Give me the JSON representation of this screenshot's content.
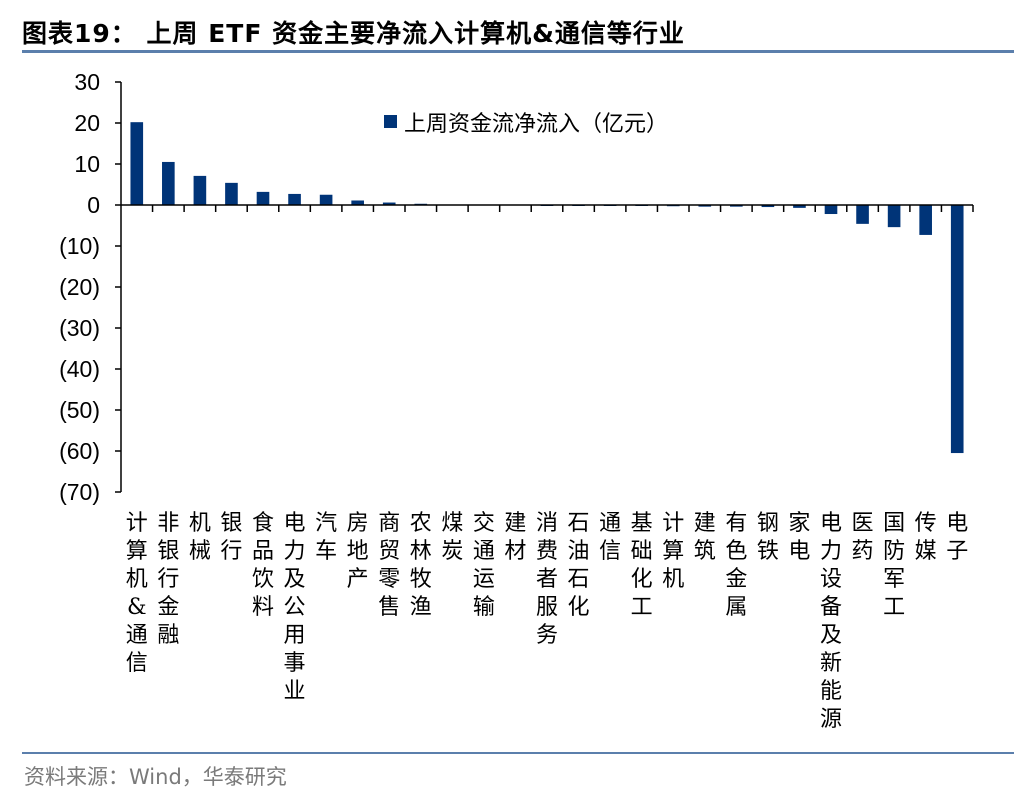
{
  "header": {
    "title": "图表19：  上周 ETF 资金主要净流入计算机&通信等行业"
  },
  "footer": {
    "source": "资料来源：Wind，华泰研究"
  },
  "colors": {
    "bar": "#003478",
    "rule": "#5b7fac",
    "source_text": "#7a7a7a"
  },
  "legend": {
    "label": "上周资金流净流入（亿元）"
  },
  "chart_data": {
    "type": "bar",
    "title": "上周 ETF 资金主要净流入计算机&通信等行业",
    "xlabel": "",
    "ylabel": "",
    "ylim": [
      -70,
      30
    ],
    "yticks": [
      30,
      20,
      10,
      0,
      -10,
      -20,
      -30,
      -40,
      -50,
      -60,
      -70
    ],
    "ytick_labels": [
      "30",
      "20",
      "10",
      "0",
      "(10)",
      "(20)",
      "(30)",
      "(40)",
      "(50)",
      "(60)",
      "(70)"
    ],
    "grid": false,
    "legend_position": "top-center",
    "categories": [
      "计算机&通信",
      "非银行金融",
      "机械",
      "银行",
      "食品饮料",
      "电力及公用事业",
      "汽车",
      "房地产",
      "商贸零售",
      "农林牧渔",
      "煤炭",
      "交通运输",
      "建材",
      "消费者服务",
      "石油石化",
      "通信",
      "基础化工",
      "计算机",
      "建筑",
      "有色金属",
      "钢铁",
      "家电",
      "电力设备及新能源",
      "医药",
      "国防军工",
      "传媒",
      "电子"
    ],
    "series": [
      {
        "name": "上周资金流净流入（亿元）",
        "values": [
          20.2,
          10.5,
          7.1,
          5.4,
          3.2,
          2.7,
          2.5,
          1.1,
          0.6,
          0.3,
          0.0,
          0.0,
          0.0,
          -0.1,
          -0.1,
          -0.1,
          -0.2,
          -0.3,
          -0.4,
          -0.4,
          -0.5,
          -0.7,
          -2.2,
          -4.6,
          -5.4,
          -7.3,
          -60.5
        ]
      }
    ]
  }
}
